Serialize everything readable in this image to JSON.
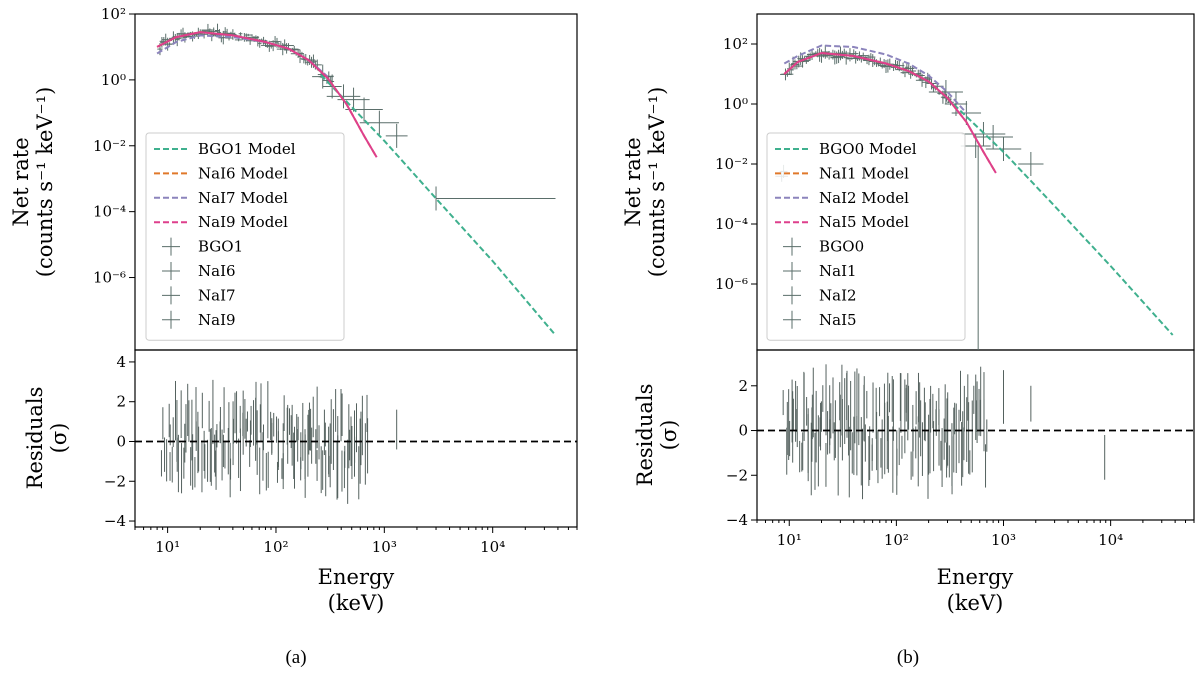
{
  "chart_data": [
    {
      "type": "line",
      "panel_label": "(a)",
      "title": "",
      "xlabel": "Energy",
      "xlabel_unit": "(keV)",
      "ylabel_top": "Net rate",
      "ylabel_top_unit": "(counts s⁻¹ keV⁻¹)",
      "ylabel_bottom": "Residuals",
      "ylabel_bottom_unit": "(σ)",
      "xscale": "log",
      "xlim": [
        5,
        60000
      ],
      "xtick_labels": [
        "10¹",
        "10²",
        "10³",
        "10⁴"
      ],
      "top": {
        "yscale": "log",
        "ylim_log10": [
          -8.2,
          2
        ],
        "ytick_labels": [
          "10⁻⁶",
          "10⁻⁴",
          "10⁻²",
          "10⁰",
          "10²"
        ],
        "legend_position": "lower-left",
        "legend": [
          "BGO1 Model",
          "NaI6 Model",
          "NaI7 Model",
          "NaI9 Model",
          "BGO1",
          "NaI6",
          "NaI7",
          "NaI9"
        ],
        "model_series": [
          {
            "name": "BGO1 Model",
            "color": "#3fb08e",
            "x": [
              260,
              1000,
              3000,
              10000,
              38000
            ],
            "log10y": [
              0.15,
              -1.85,
              -3.6,
              -5.5,
              -7.75
            ]
          },
          {
            "name": "NaI6 Model",
            "color": "#e0782a",
            "x": [
              8,
              12,
              20,
              40,
              80,
              130,
              200,
              300,
              450,
              650,
              850
            ],
            "log10y": [
              1.0,
              1.3,
              1.45,
              1.35,
              1.15,
              0.95,
              0.6,
              0.05,
              -0.75,
              -1.7,
              -2.35
            ]
          },
          {
            "name": "NaI7 Model",
            "color": "#8c84bc",
            "x": [
              8,
              12,
              20,
              40,
              80,
              130,
              200,
              300
            ],
            "log10y": [
              0.8,
              1.15,
              1.35,
              1.3,
              1.15,
              0.95,
              0.6,
              0.1
            ]
          },
          {
            "name": "NaI9 Model",
            "color": "#de3f8c",
            "x": [
              8,
              12,
              20,
              40,
              80,
              130,
              200,
              300,
              450,
              650,
              850
            ],
            "log10y": [
              1.0,
              1.3,
              1.45,
              1.35,
              1.15,
              0.95,
              0.6,
              0.05,
              -0.75,
              -1.7,
              -2.35
            ]
          }
        ],
        "data_points": [
          {
            "x": 270,
            "log10y": 0.1
          },
          {
            "x": 330,
            "log10y": -0.2
          },
          {
            "x": 420,
            "log10y": -0.5
          },
          {
            "x": 520,
            "log10y": -0.6
          },
          {
            "x": 650,
            "log10y": -0.9
          },
          {
            "x": 900,
            "log10y": -1.3
          },
          {
            "x": 1300,
            "log10y": -1.7
          },
          {
            "x": 3000,
            "log10y": -3.6
          }
        ]
      },
      "bottom": {
        "ylim": [
          -4.3,
          4.6
        ],
        "ytick_labels": [
          "4",
          "2",
          "0",
          "−2",
          "−4"
        ]
      }
    },
    {
      "type": "line",
      "panel_label": "(b)",
      "title": "",
      "xlabel": "Energy",
      "xlabel_unit": "(keV)",
      "ylabel_top": "Net rate",
      "ylabel_top_unit": "(counts s⁻¹ keV⁻¹)",
      "ylabel_bottom": "Residuals",
      "ylabel_bottom_unit": "(σ)",
      "xscale": "log",
      "xlim": [
        5,
        60000
      ],
      "xtick_labels": [
        "10¹",
        "10²",
        "10³",
        "10⁴"
      ],
      "top": {
        "yscale": "log",
        "ylim_log10": [
          -8.2,
          3
        ],
        "ytick_labels": [
          "10⁻⁶",
          "10⁻⁴",
          "10⁻²",
          "10⁰",
          "10²"
        ],
        "legend_position": "lower-left",
        "legend": [
          "BGO0 Model",
          "NaI1 Model",
          "NaI2 Model",
          "NaI5 Model",
          "BGO0",
          "NaI1",
          "NaI2",
          "NaI5"
        ],
        "model_series": [
          {
            "name": "BGO0 Model",
            "color": "#3fb08e",
            "x": [
              260,
              1000,
              3000,
              10000,
              38000
            ],
            "log10y": [
              0.4,
              -1.6,
              -3.4,
              -5.4,
              -7.7
            ]
          },
          {
            "name": "NaI1 Model",
            "color": "#e0782a",
            "x": [
              9,
              12,
              20,
              40,
              80,
              130,
              200,
              300,
              450,
              650,
              850
            ],
            "log10y": [
              1.0,
              1.4,
              1.7,
              1.6,
              1.35,
              1.1,
              0.75,
              0.2,
              -0.6,
              -1.6,
              -2.3
            ]
          },
          {
            "name": "NaI2 Model",
            "color": "#8c84bc",
            "x": [
              9,
              12,
              20,
              40,
              80,
              130,
              200,
              300,
              450
            ],
            "log10y": [
              1.35,
              1.6,
              1.95,
              1.9,
              1.65,
              1.35,
              0.95,
              0.4,
              -0.3
            ]
          },
          {
            "name": "NaI5 Model",
            "color": "#de3f8c",
            "x": [
              9,
              12,
              20,
              40,
              80,
              130,
              200,
              300,
              450,
              650,
              850
            ],
            "log10y": [
              1.0,
              1.4,
              1.7,
              1.6,
              1.35,
              1.1,
              0.75,
              0.2,
              -0.6,
              -1.6,
              -2.3
            ]
          }
        ],
        "data_points": [
          {
            "x": 290,
            "log10y": 0.4
          },
          {
            "x": 360,
            "log10y": 0.0
          },
          {
            "x": 450,
            "log10y": -0.3
          },
          {
            "x": 550,
            "log10y": -1.4
          },
          {
            "x": 650,
            "log10y": -1.0
          },
          {
            "x": 800,
            "log10y": -1.1
          },
          {
            "x": 1000,
            "log10y": -1.5
          },
          {
            "x": 1800,
            "log10y": -2.0
          }
        ]
      },
      "bottom": {
        "ylim": [
          -4,
          3.6
        ],
        "ytick_labels": [
          "2",
          "0",
          "−2",
          "−4"
        ]
      }
    }
  ]
}
